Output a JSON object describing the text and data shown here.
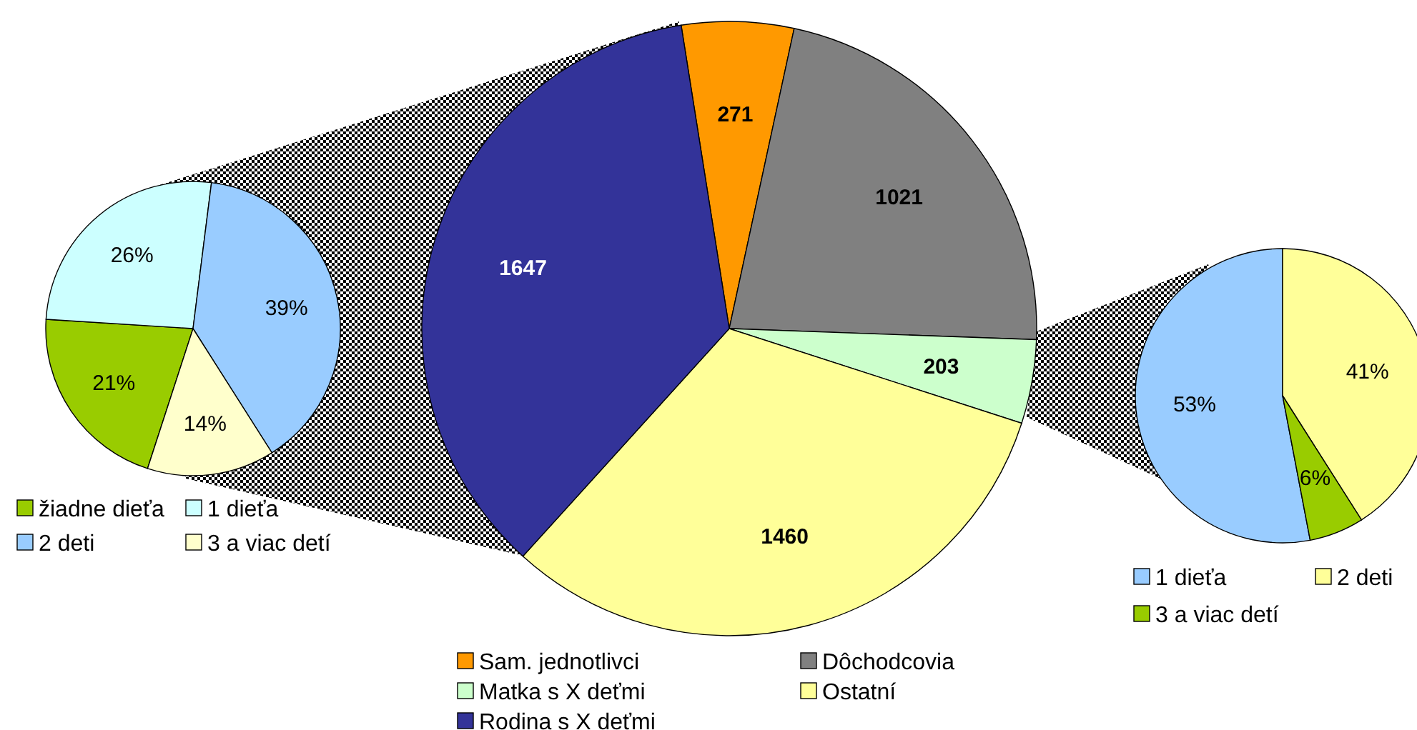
{
  "chart_data": [
    {
      "type": "pie",
      "categories": [
        "Sam. jednotlivci",
        "Dôchodcovia",
        "Matka s X deťmi",
        "Ostatní",
        "Rodina s X deťmi"
      ],
      "values": [
        271,
        1021,
        203,
        1460,
        1647
      ],
      "colors": [
        "#ff9900",
        "#808080",
        "#ccffcc",
        "#ffff99",
        "#333399"
      ],
      "data_labels": true,
      "legend": "bottom"
    },
    {
      "type": "pie",
      "categories": [
        "žiadne dieťa",
        "1 dieťa",
        "2 deti",
        "3 a viac detí"
      ],
      "values": [
        21,
        26,
        39,
        14
      ],
      "value_labels": [
        "21%",
        "26%",
        "39%",
        "14%"
      ],
      "colors": [
        "#99cc00",
        "#ccffff",
        "#99ccff",
        "#ffffcc"
      ],
      "legend": "bottom"
    },
    {
      "type": "pie",
      "categories": [
        "1 dieťa",
        "2 deti",
        "3 a viac detí"
      ],
      "values": [
        53,
        41,
        6
      ],
      "value_labels": [
        "53%",
        "41%",
        "6%"
      ],
      "colors": [
        "#99ccff",
        "#ffff99",
        "#99cc00"
      ],
      "legend": "bottom"
    }
  ]
}
